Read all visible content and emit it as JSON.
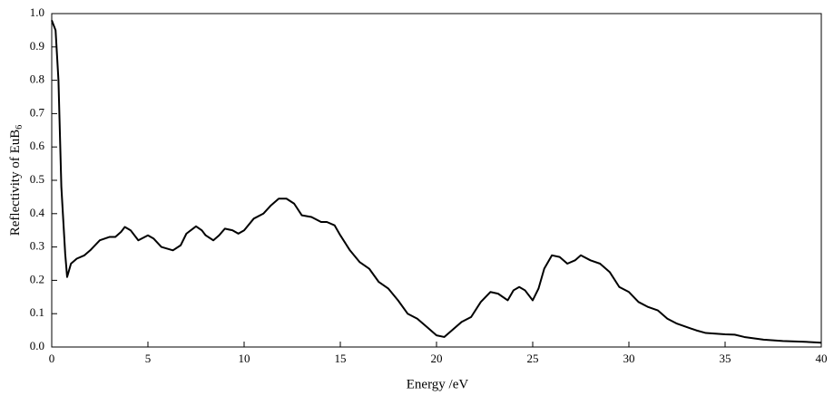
{
  "chart_data": {
    "type": "line",
    "xlabel": "Energy /eV",
    "ylabel": "Reflectivity of EuB",
    "ylabel_subscript": "6",
    "x": [
      0,
      0.2,
      0.35,
      0.5,
      0.7,
      0.8,
      1.0,
      1.3,
      1.7,
      2.0,
      2.5,
      3.0,
      3.3,
      3.6,
      3.8,
      4.1,
      4.5,
      5.0,
      5.3,
      5.7,
      6.0,
      6.3,
      6.7,
      7.0,
      7.5,
      7.8,
      8.0,
      8.4,
      8.7,
      9.0,
      9.4,
      9.7,
      10.0,
      10.5,
      11.0,
      11.4,
      11.8,
      12.2,
      12.6,
      13.0,
      13.5,
      14.0,
      14.3,
      14.7,
      15.0,
      15.5,
      16.0,
      16.5,
      17.0,
      17.5,
      18.0,
      18.5,
      19.0,
      19.5,
      20.0,
      20.4,
      20.8,
      21.3,
      21.8,
      22.3,
      22.8,
      23.2,
      23.7,
      24.0,
      24.3,
      24.6,
      25.0,
      25.3,
      25.6,
      26.0,
      26.4,
      26.8,
      27.2,
      27.5,
      28.0,
      28.5,
      29.0,
      29.5,
      30.0,
      30.5,
      31.0,
      31.5,
      32.0,
      32.5,
      33.0,
      33.5,
      34.0,
      34.5,
      35.0,
      35.5,
      36.0,
      37.0,
      38.0,
      39.0,
      40.0
    ],
    "values": [
      0.98,
      0.95,
      0.8,
      0.48,
      0.28,
      0.21,
      0.25,
      0.265,
      0.275,
      0.29,
      0.32,
      0.33,
      0.33,
      0.345,
      0.36,
      0.35,
      0.32,
      0.335,
      0.325,
      0.3,
      0.295,
      0.29,
      0.305,
      0.34,
      0.362,
      0.35,
      0.335,
      0.32,
      0.335,
      0.355,
      0.35,
      0.34,
      0.35,
      0.385,
      0.4,
      0.425,
      0.445,
      0.445,
      0.43,
      0.395,
      0.39,
      0.375,
      0.375,
      0.365,
      0.335,
      0.29,
      0.255,
      0.235,
      0.195,
      0.175,
      0.14,
      0.1,
      0.085,
      0.06,
      0.035,
      0.03,
      0.05,
      0.075,
      0.09,
      0.135,
      0.165,
      0.16,
      0.14,
      0.17,
      0.18,
      0.17,
      0.14,
      0.175,
      0.235,
      0.275,
      0.27,
      0.25,
      0.26,
      0.275,
      0.26,
      0.25,
      0.225,
      0.18,
      0.165,
      0.135,
      0.12,
      0.11,
      0.085,
      0.07,
      0.06,
      0.05,
      0.042,
      0.04,
      0.038,
      0.037,
      0.03,
      0.022,
      0.018,
      0.016,
      0.013
    ],
    "color": "#000000",
    "xlim": [
      0,
      40
    ],
    "xticks": [
      0,
      5,
      10,
      15,
      20,
      25,
      30,
      35,
      40
    ],
    "ylim": [
      0,
      1
    ],
    "yticks": [
      {
        "value": 0,
        "label": "0.0"
      },
      0.1,
      0.2,
      0.3,
      0.4,
      0.5,
      0.6,
      0.7,
      0.8,
      0.9,
      {
        "value": 1,
        "label": "1.0"
      }
    ]
  }
}
